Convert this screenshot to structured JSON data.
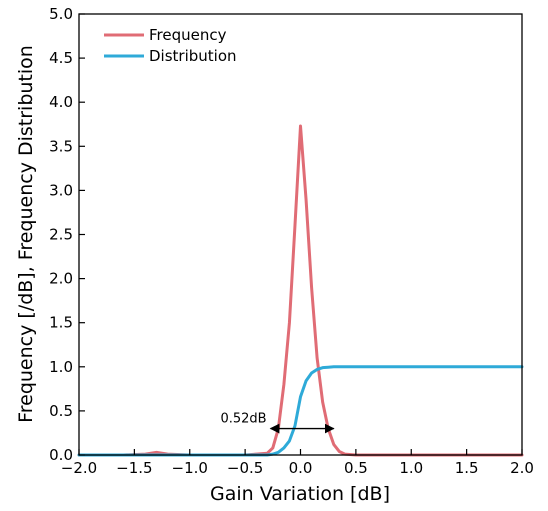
{
  "chart_data": {
    "type": "line",
    "title": "",
    "xlabel": "Gain Variation [dB]",
    "ylabel": "Frequency [/dB], Frequency Distribution",
    "xlim": [
      -2.0,
      2.0
    ],
    "ylim": [
      0.0,
      5.0
    ],
    "x_ticks": [
      -2.0,
      -1.5,
      -1.0,
      -0.5,
      0.0,
      0.5,
      1.0,
      1.5,
      2.0
    ],
    "x_tick_labels": [
      "−2.0",
      "−1.5",
      "−1.0",
      "−0.5",
      "0.0",
      "0.5",
      "1.0",
      "1.5",
      "2.0"
    ],
    "y_ticks": [
      0.0,
      0.5,
      1.0,
      1.5,
      2.0,
      2.5,
      3.0,
      3.5,
      4.0,
      4.5,
      5.0
    ],
    "y_tick_labels": [
      "0.0",
      "0.5",
      "1.0",
      "1.5",
      "2.0",
      "2.5",
      "3.0",
      "3.5",
      "4.0",
      "4.5",
      "5.0"
    ],
    "grid": false,
    "legend_position": "top-left",
    "series": [
      {
        "name": "Frequency",
        "color": "#e06c75",
        "x": [
          -2.0,
          -1.8,
          -1.6,
          -1.4,
          -1.3,
          -1.2,
          -1.0,
          -0.8,
          -0.6,
          -0.5,
          -0.4,
          -0.3,
          -0.25,
          -0.2,
          -0.15,
          -0.1,
          -0.05,
          0.0,
          0.05,
          0.1,
          0.15,
          0.2,
          0.25,
          0.3,
          0.35,
          0.4,
          0.5,
          0.6,
          0.8,
          1.0,
          1.5,
          2.0
        ],
        "y": [
          0.0,
          0.0,
          0.0,
          0.01,
          0.03,
          0.01,
          0.0,
          0.0,
          0.0,
          0.0,
          0.01,
          0.02,
          0.08,
          0.3,
          0.8,
          1.5,
          2.6,
          3.73,
          2.9,
          1.9,
          1.1,
          0.6,
          0.3,
          0.12,
          0.04,
          0.01,
          0.0,
          0.0,
          0.0,
          0.0,
          0.0,
          0.0
        ]
      },
      {
        "name": "Distribution",
        "color": "#2eaad8",
        "x": [
          -2.0,
          -1.5,
          -1.0,
          -0.5,
          -0.3,
          -0.25,
          -0.2,
          -0.15,
          -0.1,
          -0.05,
          0.0,
          0.05,
          0.1,
          0.15,
          0.2,
          0.25,
          0.3,
          0.35,
          0.4,
          0.5,
          0.6,
          0.8,
          1.0,
          1.5,
          2.0
        ],
        "y": [
          0.0,
          0.0,
          0.0,
          0.0,
          0.0,
          0.01,
          0.03,
          0.08,
          0.16,
          0.33,
          0.66,
          0.84,
          0.93,
          0.97,
          0.99,
          0.995,
          1.0,
          1.0,
          1.0,
          1.0,
          1.0,
          1.0,
          1.0,
          1.0,
          1.0
        ]
      }
    ],
    "annotations": [
      {
        "text": "0.52dB",
        "type": "double-arrow",
        "x_start": -0.27,
        "x_end": 0.3,
        "y": 0.3
      }
    ]
  }
}
